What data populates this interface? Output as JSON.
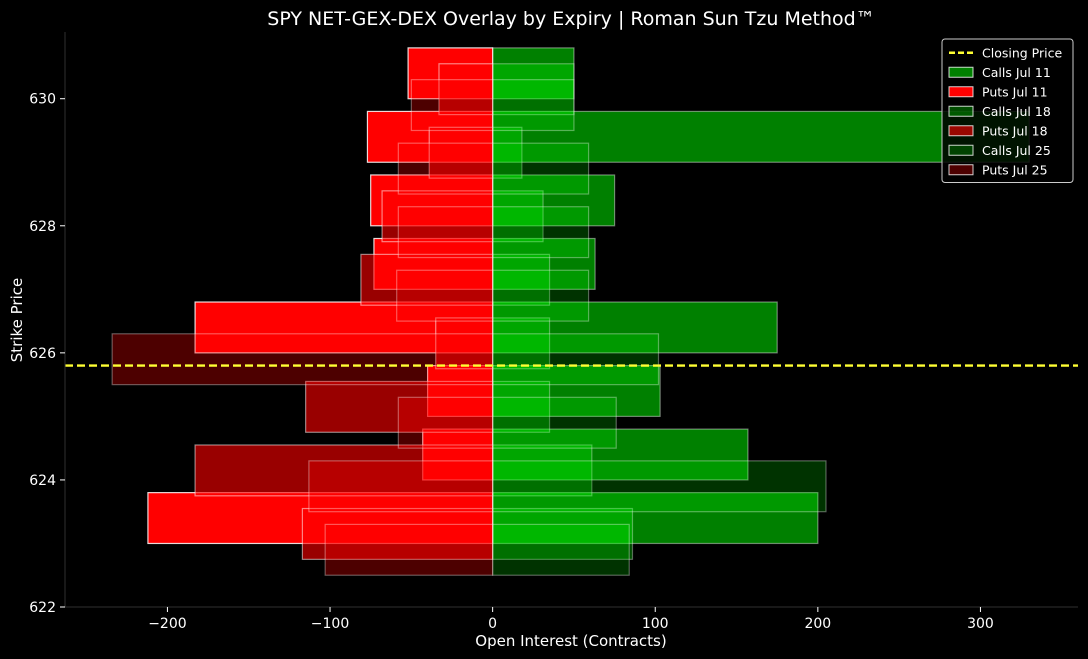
{
  "chart_data": {
    "type": "bar",
    "orientation": "horizontal",
    "title": "SPY NET-GEX-DEX Overlay by Expiry | Roman Sun Tzu Method™",
    "xlabel": "Open Interest (Contracts)",
    "ylabel": "Strike Price",
    "xlim": [
      -263,
      360
    ],
    "ylim": [
      622,
      631.05
    ],
    "xticks": [
      -200,
      -100,
      0,
      100,
      200,
      300
    ],
    "xtick_labels": [
      "−200",
      "−100",
      "0",
      "100",
      "200",
      "300"
    ],
    "yticks": [
      622,
      624,
      626,
      628,
      630
    ],
    "yticks_labels": [
      "622",
      "624",
      "626",
      "628",
      "630"
    ],
    "closing_price": 625.8,
    "closing_label": "Closing Price",
    "bar_height": 0.8,
    "legend_position": "top-right",
    "series": [
      {
        "name": "Calls Jul 11",
        "side": "call",
        "color": "#00ff00",
        "alpha": 0.5,
        "strikes": [
          630.4,
          629.4,
          628.4,
          627.4,
          626.4,
          625.4,
          624.4,
          623.4
        ],
        "values": [
          50,
          330,
          75,
          63,
          175,
          103,
          157,
          200
        ]
      },
      {
        "name": "Puts Jul 11",
        "side": "put",
        "color": "#ff0000",
        "alpha": 1.0,
        "strikes": [
          630.4,
          629.4,
          628.4,
          627.4,
          626.4,
          625.4,
          624.4,
          623.4
        ],
        "values": [
          -52,
          -77,
          -75,
          -73,
          -183,
          -40,
          -43,
          -212
        ]
      },
      {
        "name": "Calls Jul 18",
        "side": "call",
        "color": "#00ff00",
        "alpha": 0.3,
        "strikes": [
          630.15,
          629.15,
          628.15,
          627.15,
          626.15,
          625.15,
          624.15,
          623.15
        ],
        "values": [
          50,
          18,
          31,
          35,
          35,
          35,
          61,
          86
        ]
      },
      {
        "name": "Puts Jul 18",
        "side": "put",
        "color": "#ff0000",
        "alpha": 0.6,
        "strikes": [
          630.15,
          629.15,
          628.15,
          627.15,
          626.15,
          625.15,
          624.15,
          623.15
        ],
        "values": [
          -33,
          -39,
          -68,
          -81,
          -35,
          -115,
          -183,
          -117
        ]
      },
      {
        "name": "Calls Jul 25",
        "side": "call",
        "color": "#00ff00",
        "alpha": 0.2,
        "strikes": [
          629.9,
          628.9,
          627.9,
          626.9,
          625.9,
          624.9,
          623.9,
          622.9
        ],
        "values": [
          50,
          59,
          59,
          59,
          102,
          76,
          205,
          84
        ]
      },
      {
        "name": "Puts Jul 25",
        "side": "put",
        "color": "#ff0000",
        "alpha": 0.3,
        "strikes": [
          629.9,
          628.9,
          627.9,
          626.9,
          625.9,
          624.9,
          623.9,
          622.9
        ],
        "values": [
          -50,
          -58,
          -58,
          -59,
          -234,
          -58,
          -113,
          -103
        ]
      }
    ]
  }
}
